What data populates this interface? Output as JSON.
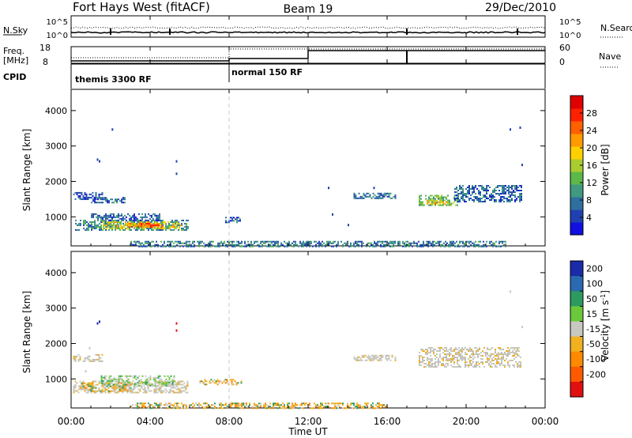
{
  "header": {
    "station": "Fort Hays West (fitACF)",
    "beam": "Beam 19",
    "date": "29/Dec/2010"
  },
  "noise_panel": {
    "left_label": "N.Sky",
    "right_label": "N.Search",
    "left_ticks": [
      "10^5",
      "10^0"
    ],
    "right_ticks": [
      "10^5",
      "10^0"
    ]
  },
  "freq_panel": {
    "left_label_line1": "Freq.",
    "left_label_line2": "[MHz]",
    "left_ticks": [
      "18",
      "8"
    ],
    "right_label": "Nave",
    "right_ticks": [
      "60",
      "0"
    ]
  },
  "cpid_panel": {
    "label": "CPID",
    "programs": [
      {
        "name": "themis 3300 RF",
        "start_hour": 0
      },
      {
        "name": "normal 150 RF",
        "start_hour": 8
      }
    ]
  },
  "chart_data": [
    {
      "type": "heatmap",
      "name": "power",
      "ylabel": "Slant Range [km]",
      "y_ticks": [
        "1000",
        "2000",
        "3000",
        "4000"
      ],
      "ylim": [
        180,
        4600
      ],
      "xlim": [
        0,
        24
      ],
      "colorbar": {
        "label": "Power [dB]",
        "ticks": [
          "4",
          "8",
          "12",
          "16",
          "20",
          "24",
          "28"
        ],
        "range": [
          0,
          32
        ],
        "colors": [
          "#1010e0",
          "#2040b0",
          "#2e6fa0",
          "#3f9a80",
          "#5cb848",
          "#aacc30",
          "#ffd000",
          "#ff9a00",
          "#ff6000",
          "#ff2000",
          "#e00000"
        ]
      },
      "regions": [
        {
          "t0": 0.1,
          "t1": 1.6,
          "r0": 1480,
          "r1": 1700,
          "level": 0.15
        },
        {
          "t0": 1.0,
          "t1": 2.7,
          "r0": 1420,
          "r1": 1560,
          "level": 0.2
        },
        {
          "t0": 0.2,
          "t1": 5.9,
          "r0": 620,
          "r1": 920,
          "level": 0.3
        },
        {
          "t0": 1.6,
          "t1": 5.6,
          "r0": 650,
          "r1": 870,
          "level": 0.55
        },
        {
          "t0": 2.8,
          "t1": 4.6,
          "r0": 700,
          "r1": 830,
          "level": 0.75
        },
        {
          "t0": 1.0,
          "t1": 4.5,
          "r0": 880,
          "r1": 1100,
          "level": 0.2
        },
        {
          "t0": 14.3,
          "t1": 16.4,
          "r0": 1530,
          "r1": 1680,
          "level": 0.22
        },
        {
          "t0": 17.6,
          "t1": 19.6,
          "r0": 1330,
          "r1": 1620,
          "level": 0.4
        },
        {
          "t0": 19.4,
          "t1": 22.8,
          "r0": 1450,
          "r1": 1900,
          "level": 0.2
        },
        {
          "t0": 18.0,
          "t1": 19.0,
          "r0": 1360,
          "r1": 1480,
          "level": 0.6
        },
        {
          "t0": 3.0,
          "t1": 22.0,
          "r0": 180,
          "r1": 320,
          "level": 0.25
        },
        {
          "t0": 7.8,
          "t1": 8.6,
          "r0": 850,
          "r1": 1000,
          "level": 0.2
        }
      ],
      "speckles": [
        {
          "t": 2.05,
          "r": 3500
        },
        {
          "t": 1.4,
          "r": 2600
        },
        {
          "t": 1.3,
          "r": 2650
        },
        {
          "t": 5.3,
          "r": 2600
        },
        {
          "t": 5.3,
          "r": 2250
        },
        {
          "t": 22.2,
          "r": 3500
        },
        {
          "t": 22.7,
          "r": 3550
        },
        {
          "t": 22.8,
          "r": 2500
        },
        {
          "t": 13.0,
          "r": 1850
        },
        {
          "t": 15.3,
          "r": 1850
        },
        {
          "t": 13.2,
          "r": 1100
        },
        {
          "t": 14.0,
          "r": 800
        }
      ]
    },
    {
      "type": "heatmap",
      "name": "velocity",
      "ylabel": "Slant Range [km]",
      "y_ticks": [
        "1000",
        "2000",
        "3000",
        "4000"
      ],
      "ylim": [
        180,
        4600
      ],
      "xlim": [
        0,
        24
      ],
      "colorbar": {
        "label": "Velocity [m s^-1]",
        "ticks": [
          "200",
          "100",
          "50",
          "15",
          "-15",
          "-50",
          "-100",
          "-200"
        ],
        "colors": [
          "#1a2aa8",
          "#2a6ab0",
          "#2d9a60",
          "#6ac83a",
          "#c8c8c0",
          "#f0b020",
          "#ff8a00",
          "#ff5a00",
          "#e01010"
        ]
      },
      "regions": [
        {
          "t0": 0.1,
          "t1": 5.9,
          "r0": 600,
          "r1": 950,
          "level": "gray"
        },
        {
          "t0": 1.5,
          "t1": 5.2,
          "r0": 800,
          "r1": 1100,
          "level": "green"
        },
        {
          "t0": 0.5,
          "t1": 3.0,
          "r0": 650,
          "r1": 900,
          "level": "orange"
        },
        {
          "t0": 0.1,
          "t1": 1.6,
          "r0": 1480,
          "r1": 1700,
          "level": "gray"
        },
        {
          "t0": 14.3,
          "t1": 16.4,
          "r0": 1530,
          "r1": 1680,
          "level": "gray"
        },
        {
          "t0": 17.6,
          "t1": 22.8,
          "r0": 1330,
          "r1": 1900,
          "level": "gray"
        },
        {
          "t0": 3.0,
          "t1": 16.0,
          "r0": 180,
          "r1": 330,
          "level": "orange"
        },
        {
          "t0": 6.5,
          "t1": 8.6,
          "r0": 850,
          "r1": 1000,
          "level": "orange"
        }
      ],
      "speckles": [
        {
          "t": 1.4,
          "r": 2650
        },
        {
          "t": 1.3,
          "r": 2600
        },
        {
          "t": 5.3,
          "r": 2600
        },
        {
          "t": 5.3,
          "r": 2400
        },
        {
          "t": 22.2,
          "r": 3500
        },
        {
          "t": 22.8,
          "r": 2500
        },
        {
          "t": 0.9,
          "r": 1900
        },
        {
          "t": 0.7,
          "r": 1250
        }
      ]
    }
  ],
  "x_axis": {
    "label": "Time UT",
    "ticks": [
      "00:00",
      "04:00",
      "08:00",
      "12:00",
      "16:00",
      "20:00",
      "00:00"
    ]
  }
}
